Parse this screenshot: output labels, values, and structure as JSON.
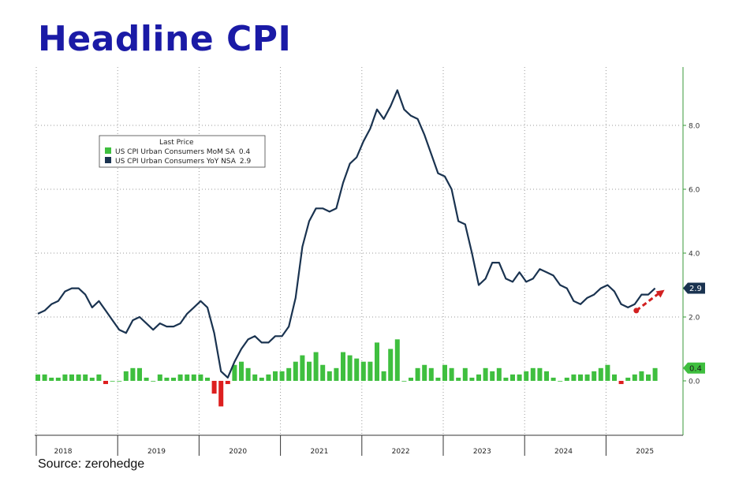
{
  "title": "Headline CPI",
  "source": "Source: zerohedge",
  "colors": {
    "title": "#1a1aa6",
    "line": "#1a3350",
    "bar_up": "#3fbf3f",
    "bar_down": "#dd1f1f",
    "axis_right": "#3a9a3a",
    "arrow": "#d22020"
  },
  "chart_data": {
    "type": "line",
    "legend": {
      "header": "Last Price",
      "position": "top-left",
      "items": [
        {
          "label": "US CPI Urban Consumers MoM SA",
          "value": "0.4",
          "color": "#3fbf3f"
        },
        {
          "label": "US CPI Urban Consumers YoY NSA",
          "value": "2.9",
          "color": "#1a3350"
        }
      ]
    },
    "y_ticks": [
      "8.0",
      "6.0",
      "4.0",
      "2.0",
      "0.0"
    ],
    "ylim": [
      -1.8,
      9.8
    ],
    "grid": true,
    "x_labels": [
      "2018",
      "2019",
      "2020",
      "2021",
      "2022",
      "2023",
      "2024",
      "2025"
    ],
    "x_start": "2018-01",
    "badges": {
      "yoy_last": "2.9",
      "mom_last": "0.4"
    },
    "series": [
      {
        "name": "US CPI Urban Consumers YoY NSA",
        "kind": "line",
        "values": [
          2.1,
          2.2,
          2.4,
          2.5,
          2.8,
          2.9,
          2.9,
          2.7,
          2.3,
          2.5,
          2.2,
          1.9,
          1.6,
          1.5,
          1.9,
          2.0,
          1.8,
          1.6,
          1.8,
          1.7,
          1.7,
          1.8,
          2.1,
          2.3,
          2.5,
          2.3,
          1.5,
          0.3,
          0.1,
          0.6,
          1.0,
          1.3,
          1.4,
          1.2,
          1.2,
          1.4,
          1.4,
          1.7,
          2.6,
          4.2,
          5.0,
          5.4,
          5.4,
          5.3,
          5.4,
          6.2,
          6.8,
          7.0,
          7.5,
          7.9,
          8.5,
          8.2,
          8.6,
          9.1,
          8.5,
          8.3,
          8.2,
          7.7,
          7.1,
          6.5,
          6.4,
          6.0,
          5.0,
          4.9,
          4.0,
          3.0,
          3.2,
          3.7,
          3.7,
          3.2,
          3.1,
          3.4,
          3.1,
          3.2,
          3.5,
          3.4,
          3.3,
          3.0,
          2.9,
          2.5,
          2.4,
          2.6,
          2.7,
          2.9,
          3.0,
          2.8,
          2.4,
          2.3,
          2.4,
          2.7,
          2.7,
          2.9
        ]
      },
      {
        "name": "US CPI Urban Consumers MoM SA",
        "kind": "bar",
        "values": [
          0.2,
          0.2,
          0.1,
          0.1,
          0.2,
          0.2,
          0.2,
          0.2,
          0.1,
          0.2,
          -0.1,
          0.0,
          0.0,
          0.3,
          0.4,
          0.4,
          0.1,
          0.0,
          0.2,
          0.1,
          0.1,
          0.2,
          0.2,
          0.2,
          0.2,
          0.1,
          -0.4,
          -0.8,
          -0.1,
          0.5,
          0.6,
          0.4,
          0.2,
          0.1,
          0.2,
          0.3,
          0.3,
          0.4,
          0.6,
          0.8,
          0.6,
          0.9,
          0.5,
          0.3,
          0.4,
          0.9,
          0.8,
          0.7,
          0.6,
          0.6,
          1.2,
          0.3,
          1.0,
          1.3,
          0.0,
          0.1,
          0.4,
          0.5,
          0.4,
          0.1,
          0.5,
          0.4,
          0.1,
          0.4,
          0.1,
          0.2,
          0.4,
          0.3,
          0.4,
          0.1,
          0.2,
          0.2,
          0.3,
          0.4,
          0.4,
          0.3,
          0.1,
          0.0,
          0.1,
          0.2,
          0.2,
          0.2,
          0.3,
          0.4,
          0.5,
          0.2,
          -0.1,
          0.1,
          0.2,
          0.3,
          0.2,
          0.4
        ]
      }
    ],
    "annotations": [
      {
        "type": "arrow",
        "description": "dashed red arrow pointing up to latest YoY print",
        "color": "#d22020"
      }
    ]
  }
}
